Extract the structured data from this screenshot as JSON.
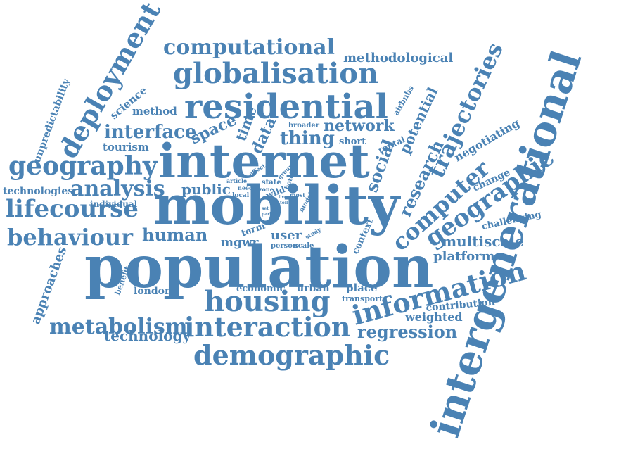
{
  "color": "#4a82b4",
  "words": [
    "intergenerational",
    "population",
    "mobility",
    "internet",
    "residential",
    "globalisation",
    "computational",
    "deployment",
    "geography",
    "housing",
    "interaction",
    "demographic",
    "information",
    "lifecourse",
    "behaviour",
    "analysis",
    "metabolism",
    "trajectories",
    "geographic",
    "computer",
    "research",
    "regression",
    "multiscale",
    "interface",
    "space",
    "network",
    "thing",
    "human",
    "data",
    "time",
    "social",
    "potential",
    "tourism",
    "method",
    "science",
    "unpredictability",
    "technologies",
    "individual",
    "public",
    "mgwr",
    "user",
    "person",
    "scale",
    "term",
    "article",
    "need",
    "state",
    "zone",
    "wild",
    "hotel",
    "broader",
    "airbnbs",
    "short",
    "rental",
    "negotiating",
    "change",
    "challenging",
    "platform",
    "contribution",
    "weighted",
    "place",
    "transport",
    "urban",
    "economic",
    "london",
    "benefit",
    "approaches",
    "technology",
    "methodological",
    "context",
    "effect",
    "group",
    "local",
    "model",
    "most",
    "study",
    "set",
    "toll",
    "live",
    "park"
  ]
}
